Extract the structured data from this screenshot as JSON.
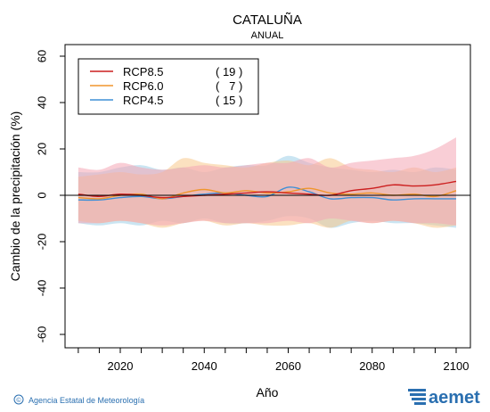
{
  "chart_data": {
    "type": "line",
    "title": "CATALUÑA",
    "subtitle": "ANUAL",
    "xlabel": "Año",
    "ylabel": "Cambio de la precipitación (%)",
    "xlim": [
      2006,
      2102
    ],
    "ylim": [
      -66,
      66
    ],
    "x_ticks": [
      2020,
      2040,
      2060,
      2080,
      2100
    ],
    "y_ticks": [
      -60,
      -40,
      -20,
      0,
      20,
      40,
      60
    ],
    "zero_line": true,
    "grid": false,
    "legend_position": "top-left",
    "x": [
      2010,
      2015,
      2020,
      2025,
      2030,
      2035,
      2040,
      2045,
      2050,
      2055,
      2060,
      2065,
      2070,
      2075,
      2080,
      2085,
      2090,
      2095,
      2100
    ],
    "series": [
      {
        "name": "RCP8.5",
        "count": "( 19 )",
        "color": "#cc1f1f",
        "band_color": "#f4a6b4",
        "values": [
          0.5,
          -0.5,
          0.5,
          0.0,
          -1.0,
          -0.5,
          0.0,
          0.5,
          1.0,
          1.5,
          1.0,
          0.5,
          0.0,
          2.0,
          3.0,
          4.5,
          4.0,
          4.5,
          6.0
        ],
        "upper": [
          12,
          11,
          14,
          12,
          11,
          12,
          13,
          12,
          13,
          14,
          14,
          16,
          12,
          14,
          15,
          16,
          17,
          20,
          25
        ],
        "lower": [
          -12,
          -12,
          -11,
          -12,
          -13,
          -12,
          -11,
          -12,
          -12,
          -12,
          -11,
          -12,
          -10,
          -11,
          -12,
          -11,
          -12,
          -12,
          -13
        ]
      },
      {
        "name": "RCP6.0",
        "count": "(   7 )",
        "color": "#f0962d",
        "band_color": "#f7c98c",
        "values": [
          -1.0,
          -1.5,
          0.0,
          0.5,
          -1.5,
          1.0,
          2.5,
          1.0,
          2.0,
          1.0,
          1.5,
          3.0,
          1.0,
          0.5,
          1.0,
          0.0,
          0.5,
          -0.5,
          2.0
        ],
        "upper": [
          8,
          9,
          10,
          9,
          10,
          16,
          14,
          13,
          12,
          14,
          15,
          13,
          16,
          12,
          11,
          10,
          12,
          10,
          12
        ],
        "lower": [
          -11,
          -12,
          -11,
          -12,
          -14,
          -12,
          -11,
          -13,
          -12,
          -13,
          -13,
          -12,
          -14,
          -11,
          -12,
          -11,
          -12,
          -14,
          -13
        ]
      },
      {
        "name": "RCP4.5",
        "count": "( 15 )",
        "color": "#3f8fd6",
        "band_color": "#9fd0e8",
        "values": [
          -2.0,
          -2.0,
          -1.0,
          -0.5,
          -1.5,
          -0.5,
          0.5,
          1.0,
          0.0,
          -0.5,
          3.5,
          1.5,
          -1.5,
          -1.0,
          -1.0,
          -2.0,
          -1.5,
          -1.5,
          -1.5
        ],
        "upper": [
          10,
          10,
          12,
          13,
          11,
          12,
          10,
          12,
          13,
          13,
          17,
          14,
          12,
          11,
          10,
          11,
          10,
          12,
          11
        ],
        "lower": [
          -12,
          -13,
          -12,
          -13,
          -11,
          -12,
          -10,
          -12,
          -12,
          -11,
          -9,
          -10,
          -14,
          -12,
          -11,
          -12,
          -12,
          -13,
          -14
        ]
      }
    ]
  },
  "footer": {
    "credit": "Agencia Estatal de Meteorología",
    "copyright_symbol": "©",
    "logo_text": "aemet"
  }
}
